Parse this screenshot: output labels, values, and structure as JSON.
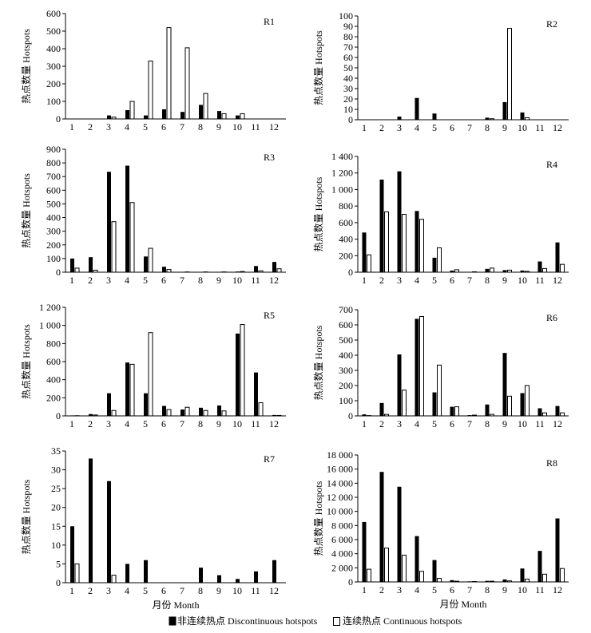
{
  "chart_data": [
    {
      "type": "bar",
      "title": "R1",
      "ylabel": "热点数量 Hotspots",
      "xlabel": "",
      "ylim": [
        0,
        600
      ],
      "yticks": [
        0,
        100,
        200,
        300,
        400,
        500,
        600
      ],
      "ytick_labels": [
        "0",
        "100",
        "200",
        "300",
        "400",
        "500",
        "600"
      ],
      "categories": [
        "1",
        "2",
        "3",
        "4",
        "5",
        "6",
        "7",
        "8",
        "9",
        "10",
        "11",
        "12"
      ],
      "series": [
        {
          "name": "非连续热点 Discontinuous hotspots",
          "values": [
            0,
            0,
            20,
            50,
            20,
            55,
            40,
            80,
            45,
            20,
            2,
            0
          ]
        },
        {
          "name": "连续热点 Continuous hotspots",
          "values": [
            0,
            0,
            10,
            100,
            330,
            520,
            405,
            145,
            30,
            30,
            0,
            0
          ]
        }
      ]
    },
    {
      "type": "bar",
      "title": "R2",
      "ylabel": "热点数量 Hotspots",
      "xlabel": "",
      "ylim": [
        0,
        100
      ],
      "yticks": [
        0,
        10,
        20,
        30,
        40,
        50,
        60,
        70,
        80,
        90,
        100
      ],
      "ytick_labels": [
        "0",
        "10",
        "20",
        "30",
        "40",
        "50",
        "60",
        "70",
        "80",
        "90",
        "100"
      ],
      "categories": [
        "1",
        "2",
        "3",
        "4",
        "5",
        "6",
        "7",
        "8",
        "9",
        "10",
        "11",
        "12"
      ],
      "series": [
        {
          "name": "非连续热点 Discontinuous hotspots",
          "values": [
            0,
            0,
            3,
            21,
            6,
            0,
            0,
            2,
            17,
            7,
            0,
            0
          ]
        },
        {
          "name": "连续热点 Continuous hotspots",
          "values": [
            0,
            0,
            0,
            0,
            0,
            0,
            0,
            1,
            88,
            2,
            0,
            0
          ]
        }
      ]
    },
    {
      "type": "bar",
      "title": "R3",
      "ylabel": "热点数量 Hotspots",
      "xlabel": "",
      "ylim": [
        0,
        900
      ],
      "yticks": [
        0,
        100,
        200,
        300,
        400,
        500,
        600,
        700,
        800,
        900
      ],
      "ytick_labels": [
        "0",
        "100",
        "200",
        "300",
        "400",
        "500",
        "600",
        "700",
        "800",
        "900"
      ],
      "categories": [
        "1",
        "2",
        "3",
        "4",
        "5",
        "6",
        "7",
        "8",
        "9",
        "10",
        "11",
        "12"
      ],
      "series": [
        {
          "name": "非连续热点 Discontinuous hotspots",
          "values": [
            100,
            110,
            735,
            780,
            115,
            40,
            2,
            2,
            2,
            5,
            45,
            75
          ]
        },
        {
          "name": "连续热点 Continuous hotspots",
          "values": [
            30,
            15,
            370,
            510,
            175,
            20,
            2,
            2,
            2,
            5,
            10,
            25
          ]
        }
      ]
    },
    {
      "type": "bar",
      "title": "R4",
      "ylabel": "热点数量 Hotspots",
      "xlabel": "",
      "ylim": [
        0,
        1400
      ],
      "yticks": [
        0,
        200,
        400,
        600,
        800,
        1000,
        1200,
        1400
      ],
      "ytick_labels": [
        "0",
        "200",
        "400",
        "600",
        "800",
        "1 000",
        "1 200",
        "1 400"
      ],
      "categories": [
        "1",
        "2",
        "3",
        "4",
        "5",
        "6",
        "7",
        "8",
        "9",
        "10",
        "11",
        "12"
      ],
      "series": [
        {
          "name": "非连续热点 Discontinuous hotspots",
          "values": [
            480,
            1120,
            1220,
            740,
            175,
            20,
            5,
            40,
            25,
            20,
            130,
            360
          ]
        },
        {
          "name": "连续热点 Continuous hotspots",
          "values": [
            210,
            730,
            700,
            640,
            295,
            30,
            5,
            50,
            25,
            10,
            45,
            95
          ]
        }
      ]
    },
    {
      "type": "bar",
      "title": "R5",
      "ylabel": "热点数量 Hotspots",
      "xlabel": "",
      "ylim": [
        0,
        1200
      ],
      "yticks": [
        0,
        200,
        400,
        600,
        800,
        1000,
        1200
      ],
      "ytick_labels": [
        "0",
        "200",
        "400",
        "600",
        "800",
        "1 000",
        "1 200"
      ],
      "categories": [
        "1",
        "2",
        "3",
        "4",
        "5",
        "6",
        "7",
        "8",
        "9",
        "10",
        "11",
        "12"
      ],
      "series": [
        {
          "name": "非连续热点 Discontinuous hotspots",
          "values": [
            5,
            20,
            250,
            590,
            250,
            110,
            70,
            90,
            115,
            910,
            480,
            10
          ]
        },
        {
          "name": "连续热点 Continuous hotspots",
          "values": [
            2,
            10,
            60,
            570,
            920,
            70,
            95,
            60,
            55,
            1010,
            145,
            5
          ]
        }
      ]
    },
    {
      "type": "bar",
      "title": "R6",
      "ylabel": "热点数量 Hotspots",
      "xlabel": "",
      "ylim": [
        0,
        700
      ],
      "yticks": [
        0,
        100,
        200,
        300,
        400,
        500,
        600,
        700
      ],
      "ytick_labels": [
        "0",
        "100",
        "200",
        "300",
        "400",
        "500",
        "600",
        "700"
      ],
      "categories": [
        "1",
        "2",
        "3",
        "4",
        "5",
        "6",
        "7",
        "8",
        "9",
        "10",
        "11",
        "12"
      ],
      "series": [
        {
          "name": "非连续热点 Discontinuous hotspots",
          "values": [
            10,
            85,
            405,
            640,
            155,
            60,
            5,
            75,
            415,
            150,
            50,
            65
          ]
        },
        {
          "name": "连续热点 Continuous hotspots",
          "values": [
            2,
            10,
            170,
            655,
            335,
            60,
            5,
            10,
            130,
            200,
            20,
            20
          ]
        }
      ]
    },
    {
      "type": "bar",
      "title": "R7",
      "ylabel": "热点数量 Hotspots",
      "xlabel": "月份 Month",
      "ylim": [
        0,
        35
      ],
      "yticks": [
        0,
        5,
        10,
        15,
        20,
        25,
        30,
        35
      ],
      "ytick_labels": [
        "0",
        "5",
        "10",
        "15",
        "20",
        "25",
        "30",
        "35"
      ],
      "categories": [
        "1",
        "2",
        "3",
        "4",
        "5",
        "6",
        "7",
        "8",
        "9",
        "10",
        "11",
        "12"
      ],
      "series": [
        {
          "name": "非连续热点 Discontinuous hotspots",
          "values": [
            15,
            33,
            27,
            5,
            6,
            0,
            0,
            4,
            2,
            1,
            3,
            6
          ]
        },
        {
          "name": "连续热点 Continuous hotspots",
          "values": [
            5,
            0,
            2,
            0,
            0,
            0,
            0,
            0,
            0,
            0,
            0,
            0
          ]
        }
      ]
    },
    {
      "type": "bar",
      "title": "R8",
      "ylabel": "热点数量 Hotspots",
      "xlabel": "月份 Month",
      "ylim": [
        0,
        18000
      ],
      "yticks": [
        0,
        2000,
        4000,
        6000,
        8000,
        10000,
        12000,
        14000,
        16000,
        18000
      ],
      "ytick_labels": [
        "0",
        "2 000",
        "4 000",
        "6 000",
        "8 000",
        "10 000",
        "12 000",
        "14 000",
        "16 000",
        "18 000"
      ],
      "categories": [
        "1",
        "2",
        "3",
        "4",
        "5",
        "6",
        "7",
        "8",
        "9",
        "10",
        "11",
        "12"
      ],
      "series": [
        {
          "name": "非连续热点 Discontinuous hotspots",
          "values": [
            8500,
            15600,
            13500,
            6500,
            3100,
            250,
            80,
            150,
            350,
            1900,
            4400,
            9000
          ]
        },
        {
          "name": "连续热点 Continuous hotspots",
          "values": [
            1800,
            4800,
            3800,
            1500,
            500,
            100,
            50,
            100,
            150,
            400,
            1100,
            1900
          ]
        }
      ]
    }
  ],
  "legend": {
    "discontinuous_label": "非连续热点 Discontinuous hotspots",
    "continuous_label": "连续热点 Continuous hotspots",
    "discontinuous_color": "#000000",
    "continuous_color": "#ffffff"
  }
}
